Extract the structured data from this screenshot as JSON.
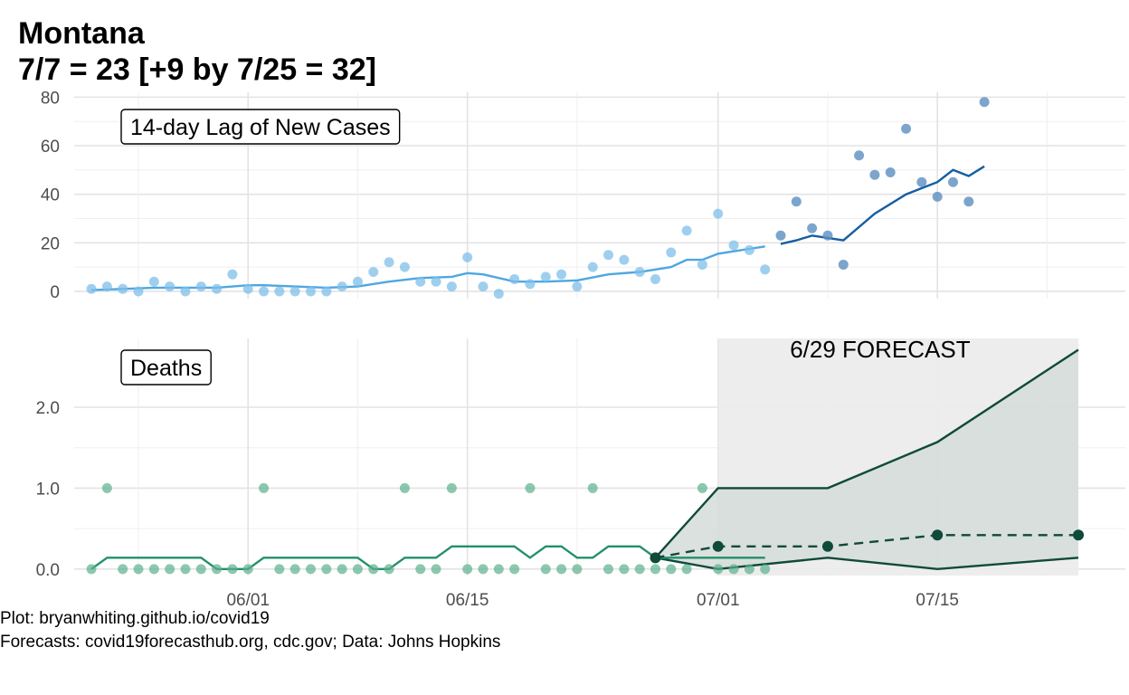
{
  "title": "Montana",
  "subtitle": "7/7 = 23 [+9 by 7/25 = 32]",
  "caption": [
    "Plot: bryanwhiting.github.io/covid19",
    "Forecasts: covid19forecasthub.org, cdc.gov; Data: Johns Hopkins"
  ],
  "colors": {
    "cases_observed": "#4ea7e0",
    "cases_observed_points": "#7fbfea",
    "cases_future": "#155ea1",
    "cases_future_points": "#5b8fc0",
    "deaths_observed": "#22906a",
    "deaths_points": "#5bb08d",
    "forecast": "#0f4a3a",
    "forecast_band": "#d5dcd8",
    "forecast_background": "#ececec"
  },
  "chart_data": [
    {
      "type": "scatter",
      "panel_label": "14-day Lag of New Cases",
      "x_type": "date",
      "xlim": [
        "2020-05-22",
        "2020-07-27"
      ],
      "ylim": [
        -3,
        82
      ],
      "y_ticks": [
        0,
        20,
        40,
        60,
        80
      ],
      "y_tick_labels": [
        "0",
        "20",
        "40",
        "60",
        "80"
      ],
      "grid": true,
      "points": [
        [
          "2020-05-22",
          1
        ],
        [
          "2020-05-23",
          2
        ],
        [
          "2020-05-24",
          1
        ],
        [
          "2020-05-25",
          0
        ],
        [
          "2020-05-26",
          4
        ],
        [
          "2020-05-27",
          2
        ],
        [
          "2020-05-28",
          0
        ],
        [
          "2020-05-29",
          2
        ],
        [
          "2020-05-30",
          1
        ],
        [
          "2020-05-31",
          7
        ],
        [
          "2020-06-01",
          1
        ],
        [
          "2020-06-02",
          0
        ],
        [
          "2020-06-03",
          0
        ],
        [
          "2020-06-04",
          0
        ],
        [
          "2020-06-05",
          0
        ],
        [
          "2020-06-06",
          0
        ],
        [
          "2020-06-07",
          2
        ],
        [
          "2020-06-08",
          4
        ],
        [
          "2020-06-09",
          8
        ],
        [
          "2020-06-10",
          12
        ],
        [
          "2020-06-11",
          10
        ],
        [
          "2020-06-12",
          4
        ],
        [
          "2020-06-13",
          4
        ],
        [
          "2020-06-14",
          2
        ],
        [
          "2020-06-15",
          14
        ],
        [
          "2020-06-16",
          2
        ],
        [
          "2020-06-17",
          -1
        ],
        [
          "2020-06-18",
          5
        ],
        [
          "2020-06-19",
          3
        ],
        [
          "2020-06-20",
          6
        ],
        [
          "2020-06-21",
          7
        ],
        [
          "2020-06-22",
          2
        ],
        [
          "2020-06-23",
          10
        ],
        [
          "2020-06-24",
          15
        ],
        [
          "2020-06-25",
          13
        ],
        [
          "2020-06-26",
          8
        ],
        [
          "2020-06-27",
          5
        ],
        [
          "2020-06-28",
          16
        ],
        [
          "2020-06-29",
          25
        ],
        [
          "2020-06-30",
          11
        ],
        [
          "2020-07-01",
          32
        ],
        [
          "2020-07-02",
          19
        ],
        [
          "2020-07-03",
          17
        ],
        [
          "2020-07-04",
          9
        ]
      ],
      "points_future": [
        [
          "2020-07-05",
          23
        ],
        [
          "2020-07-06",
          37
        ],
        [
          "2020-07-07",
          26
        ],
        [
          "2020-07-08",
          23
        ],
        [
          "2020-07-09",
          11
        ],
        [
          "2020-07-10",
          56
        ],
        [
          "2020-07-11",
          48
        ],
        [
          "2020-07-12",
          49
        ],
        [
          "2020-07-13",
          67
        ],
        [
          "2020-07-14",
          45
        ],
        [
          "2020-07-15",
          39
        ],
        [
          "2020-07-16",
          45
        ],
        [
          "2020-07-17",
          37
        ],
        [
          "2020-07-18",
          78
        ]
      ],
      "trend": [
        [
          "2020-05-22",
          0.5
        ],
        [
          "2020-05-24",
          1
        ],
        [
          "2020-05-26",
          1.5
        ],
        [
          "2020-05-28",
          1.5
        ],
        [
          "2020-05-30",
          1.5
        ],
        [
          "2020-06-01",
          2.5
        ],
        [
          "2020-06-02",
          2.5
        ],
        [
          "2020-06-04",
          2
        ],
        [
          "2020-06-06",
          1.5
        ],
        [
          "2020-06-08",
          2
        ],
        [
          "2020-06-10",
          4
        ],
        [
          "2020-06-12",
          5.5
        ],
        [
          "2020-06-14",
          6
        ],
        [
          "2020-06-15",
          7.5
        ],
        [
          "2020-06-16",
          7
        ],
        [
          "2020-06-18",
          4
        ],
        [
          "2020-06-20",
          4
        ],
        [
          "2020-06-22",
          4.5
        ],
        [
          "2020-06-24",
          7
        ],
        [
          "2020-06-26",
          8
        ],
        [
          "2020-06-28",
          10
        ],
        [
          "2020-06-29",
          13
        ],
        [
          "2020-06-30",
          13
        ],
        [
          "2020-07-01",
          15.5
        ],
        [
          "2020-07-02",
          16.5
        ],
        [
          "2020-07-04",
          18.5
        ]
      ],
      "trend_future": [
        [
          "2020-07-05",
          19.5
        ],
        [
          "2020-07-06",
          21
        ],
        [
          "2020-07-07",
          23
        ],
        [
          "2020-07-08",
          22
        ],
        [
          "2020-07-09",
          21
        ],
        [
          "2020-07-11",
          32
        ],
        [
          "2020-07-13",
          40
        ],
        [
          "2020-07-15",
          45
        ],
        [
          "2020-07-16",
          50
        ],
        [
          "2020-07-17",
          47.5
        ],
        [
          "2020-07-18",
          51.5
        ]
      ]
    },
    {
      "type": "line",
      "panel_label": "Deaths",
      "x_type": "date",
      "xlim": [
        "2020-05-22",
        "2020-07-27"
      ],
      "ylim": [
        -0.08,
        2.85
      ],
      "y_ticks": [
        0,
        1,
        2
      ],
      "y_tick_labels": [
        "0.0",
        "1.0",
        "2.0"
      ],
      "x_ticks": [
        "2020-06-01",
        "2020-06-15",
        "2020-07-01",
        "2020-07-15"
      ],
      "x_tick_labels": [
        "06/01",
        "06/15",
        "07/01",
        "07/15"
      ],
      "grid": true,
      "points": [
        [
          "2020-05-22",
          0
        ],
        [
          "2020-05-23",
          1
        ],
        [
          "2020-05-24",
          0
        ],
        [
          "2020-05-25",
          0
        ],
        [
          "2020-05-26",
          0
        ],
        [
          "2020-05-27",
          0
        ],
        [
          "2020-05-28",
          0
        ],
        [
          "2020-05-29",
          0
        ],
        [
          "2020-05-30",
          0
        ],
        [
          "2020-05-31",
          0
        ],
        [
          "2020-06-01",
          0
        ],
        [
          "2020-06-02",
          1
        ],
        [
          "2020-06-03",
          0
        ],
        [
          "2020-06-04",
          0
        ],
        [
          "2020-06-05",
          0
        ],
        [
          "2020-06-06",
          0
        ],
        [
          "2020-06-07",
          0
        ],
        [
          "2020-06-08",
          0
        ],
        [
          "2020-06-09",
          0
        ],
        [
          "2020-06-10",
          0
        ],
        [
          "2020-06-11",
          1
        ],
        [
          "2020-06-12",
          0
        ],
        [
          "2020-06-13",
          0
        ],
        [
          "2020-06-14",
          1
        ],
        [
          "2020-06-15",
          0
        ],
        [
          "2020-06-16",
          0
        ],
        [
          "2020-06-17",
          0
        ],
        [
          "2020-06-18",
          0
        ],
        [
          "2020-06-19",
          1
        ],
        [
          "2020-06-20",
          0
        ],
        [
          "2020-06-21",
          0
        ],
        [
          "2020-06-22",
          0
        ],
        [
          "2020-06-23",
          1
        ],
        [
          "2020-06-24",
          0
        ],
        [
          "2020-06-25",
          0
        ],
        [
          "2020-06-26",
          0
        ],
        [
          "2020-06-27",
          0
        ],
        [
          "2020-06-28",
          0
        ],
        [
          "2020-06-29",
          0
        ],
        [
          "2020-06-30",
          1
        ],
        [
          "2020-07-01",
          0
        ],
        [
          "2020-07-02",
          0
        ],
        [
          "2020-07-03",
          0
        ],
        [
          "2020-07-04",
          0
        ]
      ],
      "trend": [
        [
          "2020-05-22",
          0
        ],
        [
          "2020-05-23",
          0.14
        ],
        [
          "2020-05-29",
          0.14
        ],
        [
          "2020-05-30",
          0
        ],
        [
          "2020-06-01",
          0
        ],
        [
          "2020-06-02",
          0.14
        ],
        [
          "2020-06-08",
          0.14
        ],
        [
          "2020-06-09",
          0
        ],
        [
          "2020-06-10",
          0
        ],
        [
          "2020-06-11",
          0.14
        ],
        [
          "2020-06-13",
          0.14
        ],
        [
          "2020-06-14",
          0.28
        ],
        [
          "2020-06-18",
          0.28
        ],
        [
          "2020-06-19",
          0.14
        ],
        [
          "2020-06-20",
          0.28
        ],
        [
          "2020-06-21",
          0.28
        ],
        [
          "2020-06-22",
          0.14
        ],
        [
          "2020-06-23",
          0.14
        ],
        [
          "2020-06-24",
          0.28
        ],
        [
          "2020-06-26",
          0.28
        ],
        [
          "2020-06-27",
          0.14
        ],
        [
          "2020-07-04",
          0.14
        ]
      ],
      "forecast": {
        "label": "6/29 FORECAST",
        "region": [
          "2020-07-01",
          "2020-07-24"
        ],
        "anchor": [
          "2020-06-27",
          0.14
        ],
        "median": [
          [
            "2020-07-01",
            0.28
          ],
          [
            "2020-07-08",
            0.28
          ],
          [
            "2020-07-15",
            0.42
          ],
          [
            "2020-07-24",
            0.42
          ]
        ],
        "upper": [
          [
            "2020-06-27",
            0.14
          ],
          [
            "2020-07-01",
            1.0
          ],
          [
            "2020-07-08",
            1.0
          ],
          [
            "2020-07-15",
            1.57
          ],
          [
            "2020-07-24",
            2.71
          ]
        ],
        "lower": [
          [
            "2020-06-27",
            0.14
          ],
          [
            "2020-07-01",
            0.0
          ],
          [
            "2020-07-08",
            0.14
          ],
          [
            "2020-07-15",
            0.0
          ],
          [
            "2020-07-24",
            0.14
          ]
        ]
      }
    }
  ]
}
